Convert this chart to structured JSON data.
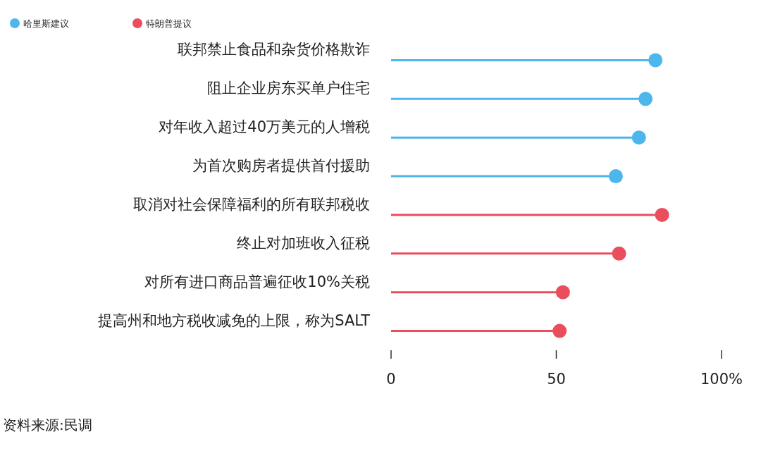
{
  "chart_data": {
    "type": "lollipop",
    "orientation": "horizontal",
    "categories": [
      "联邦禁止食品和杂货价格欺诈",
      "阻止企业房东买单户住宅",
      "对年收入超过40万美元的人增税",
      "为首次购房者提供首付援助",
      "取消对社会保障福利的所有联邦税收",
      "终止对加班收入征税",
      "对所有进口商品普遍征收10%关税",
      "提高州和地方税收减免的上限，称为SALT"
    ],
    "series": [
      {
        "name": "哈里斯建议",
        "color": "#4db6ec",
        "values": [
          80,
          77,
          75,
          68,
          null,
          null,
          null,
          null
        ]
      },
      {
        "name": "特朗普提议",
        "color": "#ea4e5c",
        "values": [
          null,
          null,
          null,
          null,
          82,
          69,
          52,
          51
        ]
      }
    ],
    "xlim": [
      0,
      100
    ],
    "xticks": [
      0,
      50,
      {
        "value": 100,
        "label": "100%"
      }
    ],
    "legend": "top left",
    "grid": false,
    "annotations": [
      "资料来源:民调"
    ]
  }
}
